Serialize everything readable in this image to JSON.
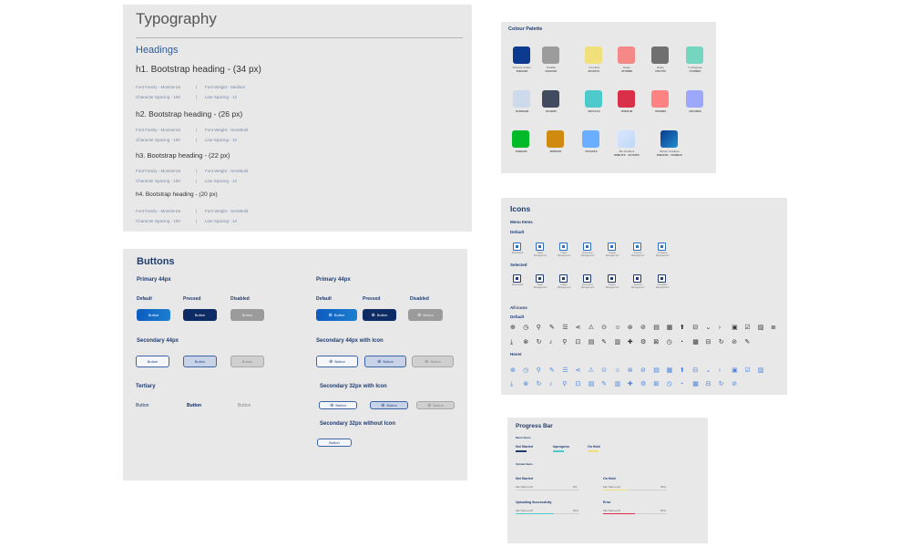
{
  "typography": {
    "title": "Typography",
    "section": "Headings",
    "headings": [
      {
        "text": "h1. Bootstrap heading - (34 px)",
        "family": "Font Family - Montserrat",
        "weight": "Font Weight - Medium",
        "spacing": "Character Spacing - 100",
        "line": "Line Spacing - 12"
      },
      {
        "text": "h2. Bootstrap heading - (26 px)",
        "family": "Font Family - Montserrat",
        "weight": "Font Weight - SemiBold",
        "spacing": "Character Spacing - 100",
        "line": "Line Spacing - 12"
      },
      {
        "text": "h3. Bootstrap heading - (22 px)",
        "family": "Font Family - Montserrat",
        "weight": "Font Weight - SemiBold",
        "spacing": "Character Spacing - 100",
        "line": "Line Spacing - 12"
      },
      {
        "text": "h4. Bootstrap heading - (20 px)",
        "family": "Font Family - Montserrat",
        "weight": "Font Weight - SemiBold",
        "spacing": "Character Spacing - 100",
        "line": "Line Spacing - 12"
      }
    ],
    "separator": "|"
  },
  "buttons": {
    "title": "Buttons",
    "primary_title": "Primary 44px",
    "primary_icon_title": "Primary 44px",
    "secondary_title": "Secondary 44px",
    "secondary_icon_title": "Secondary 44px with Icon",
    "tertiary_title": "Tertiary",
    "secondary32_icon_title": "Secondary 32px with Icon",
    "secondary32_title": "Secondary 32px without Icon",
    "state_default": "Default",
    "state_pressed": "Pressed",
    "state_disabled": "Disabled",
    "button_label": "Button",
    "icon_glyph": "⊕",
    "colors": {
      "primary": "#0d5bbf",
      "pressed": "#0d2c66",
      "disabled": "#9b9b9b"
    }
  },
  "palette": {
    "title": "Colour Palette",
    "swatches": [
      {
        "name": "Primary Colour",
        "hex": "#0B3A8F",
        "color": "#0b3a8f"
      },
      {
        "name": "Disable",
        "hex": "#9C9C9C",
        "color": "#9c9c9c"
      },
      {
        "name": "On Hold",
        "hex": "#F1DF7C",
        "color": "#f1df7c"
      },
      {
        "name": "Delay",
        "hex": "#F78888",
        "color": "#f78888"
      },
      {
        "name": "Delay",
        "hex": "#707070",
        "color": "#707070"
      },
      {
        "name": "In-Progress",
        "hex": "#74D6BF",
        "color": "#74d6bf"
      },
      {
        "name": "",
        "hex": "#CDDAEB",
        "color": "#cddaeb"
      },
      {
        "name": "",
        "hex": "#414B5F",
        "color": "#414b5f"
      },
      {
        "name": "",
        "hex": "#4FCACC",
        "color": "#4fcacc"
      },
      {
        "name": "",
        "hex": "#D92F48",
        "color": "#d92f48"
      },
      {
        "name": "",
        "hex": "#FF8282",
        "color": "#ff8282"
      },
      {
        "name": "",
        "hex": "#9CA8FB",
        "color": "#9ca8fb"
      },
      {
        "name": "",
        "hex": "#00BA29",
        "color": "#00ba29"
      },
      {
        "name": "",
        "hex": "#D08A0F",
        "color": "#d08a0f"
      },
      {
        "name": "",
        "hex": "#6AAFFF",
        "color": "#6aafff"
      },
      {
        "name": "BG Gradient",
        "hex": "#D8E7FF - #C7E0FF",
        "color": "linear-gradient(135deg,#d8e7ff,#c0d6f5)"
      },
      {
        "name": "Button Gradient",
        "hex": "#0B3A8F - #1E8ECF",
        "color": "linear-gradient(135deg,#0b3a8f,#1e8ecf)"
      }
    ]
  },
  "icons": {
    "title": "Icons",
    "menu_title": "Menu Items",
    "default_label": "Default",
    "selected_label": "Selected",
    "all_title": "All Icons",
    "all_default_label": "Default",
    "hover_label": "Hover",
    "menu_items": [
      "Dashboard",
      "Tasks Management",
      "Folder Management",
      "Document Management",
      "Project Management",
      "Account Management",
      "Configure Management"
    ],
    "row1": [
      "⊕",
      "◷",
      "⚲",
      "✎",
      "☰",
      "⋖",
      "⚠",
      "⊙",
      "☺",
      "⊛",
      "⊘",
      "▤",
      "▦",
      "⬆",
      "⊟",
      "⌄",
      "›",
      "▣",
      "☑",
      "▨",
      "≣"
    ],
    "row2": [
      "⤓",
      "⊗",
      "↻",
      "♪",
      "⚲",
      "⊡",
      "▤",
      "✎",
      "▥",
      "✚",
      "⚙",
      "⊠",
      "◷",
      "◔",
      "▦",
      "⊟",
      "↻",
      "⊘",
      "✎"
    ],
    "hover_row1": [
      "⊕",
      "◷",
      "⚲",
      "✎",
      "☰",
      "⋖",
      "⚠",
      "⊙",
      "☺",
      "⊛",
      "⊘",
      "▤",
      "▦",
      "⬆",
      "⊟",
      "⌄",
      "›",
      "▣",
      "☑",
      "▨"
    ],
    "hover_row2": [
      "⤓",
      "⊗",
      "↻",
      "♪",
      "⚲",
      "⊡",
      "▤",
      "✎",
      "▥",
      "✚",
      "⚙",
      "⊠",
      "◷",
      "◔",
      "▦",
      "⊟",
      "↻",
      "⊘"
    ]
  },
  "progress": {
    "title": "Progress Bar",
    "menu_title": "Menu Items",
    "tabs": [
      {
        "label": "Not Started",
        "color": "#1f3c72",
        "value": 1.0
      },
      {
        "label": "Inprogress",
        "color": "#4fcacc",
        "value": 1.0
      },
      {
        "label": "On Hold",
        "color": "#f1df7c",
        "value": 1.0
      }
    ],
    "upload_title": "Upload Items",
    "uploads": [
      {
        "title": "Not Started",
        "file": "File Name.pdf",
        "size": "0%",
        "color": "#9c9c9c",
        "value": 0
      },
      {
        "title": "On Hold",
        "file": "File Name.pdf",
        "size": "40%",
        "color": "#f1df7c",
        "value": 0.4
      },
      {
        "title": "Uploading Successfully",
        "file": "File Name.pdf",
        "size": "60%",
        "color": "#4fcacc",
        "value": 0.6
      },
      {
        "title": "Error",
        "file": "File Name.pdf",
        "size": "50%",
        "color": "#d92f48",
        "value": 0.5
      }
    ]
  }
}
